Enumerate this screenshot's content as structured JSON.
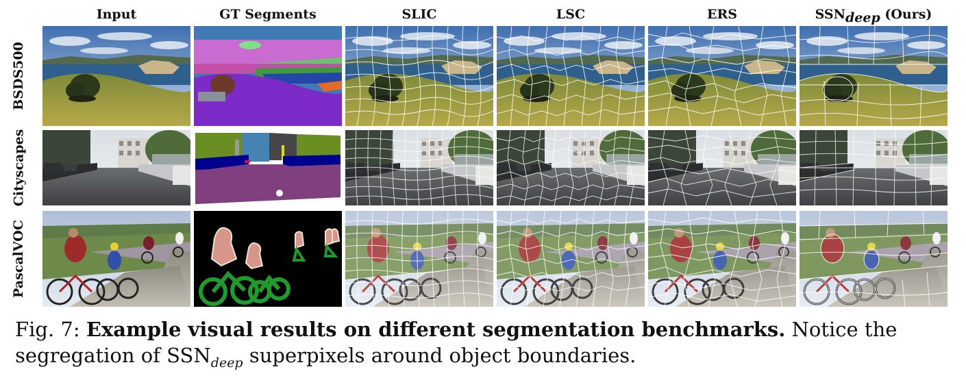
{
  "columns": [
    {
      "id": "input",
      "label": "Input"
    },
    {
      "id": "gt",
      "label": "GT Segments"
    },
    {
      "id": "slic",
      "label": "SLIC"
    },
    {
      "id": "lsc",
      "label": "LSC"
    },
    {
      "id": "ers",
      "label": "ERS"
    },
    {
      "id": "ssn",
      "label": "SSN",
      "label_sub": "deep",
      "label_suffix": " (Ours)"
    }
  ],
  "rows": [
    {
      "id": "bsds",
      "label": "BSDS500"
    },
    {
      "id": "city",
      "label": "Cityscapes"
    },
    {
      "id": "voc",
      "label": "PascalVOC"
    }
  ],
  "caption": {
    "prefix": "Fig. 7: ",
    "bold": "Example visual results on different segmentation benchmarks.",
    "text1": " Notice the segregation of SSN",
    "sub": "deep",
    "text2": " superpixels around object boundaries."
  }
}
